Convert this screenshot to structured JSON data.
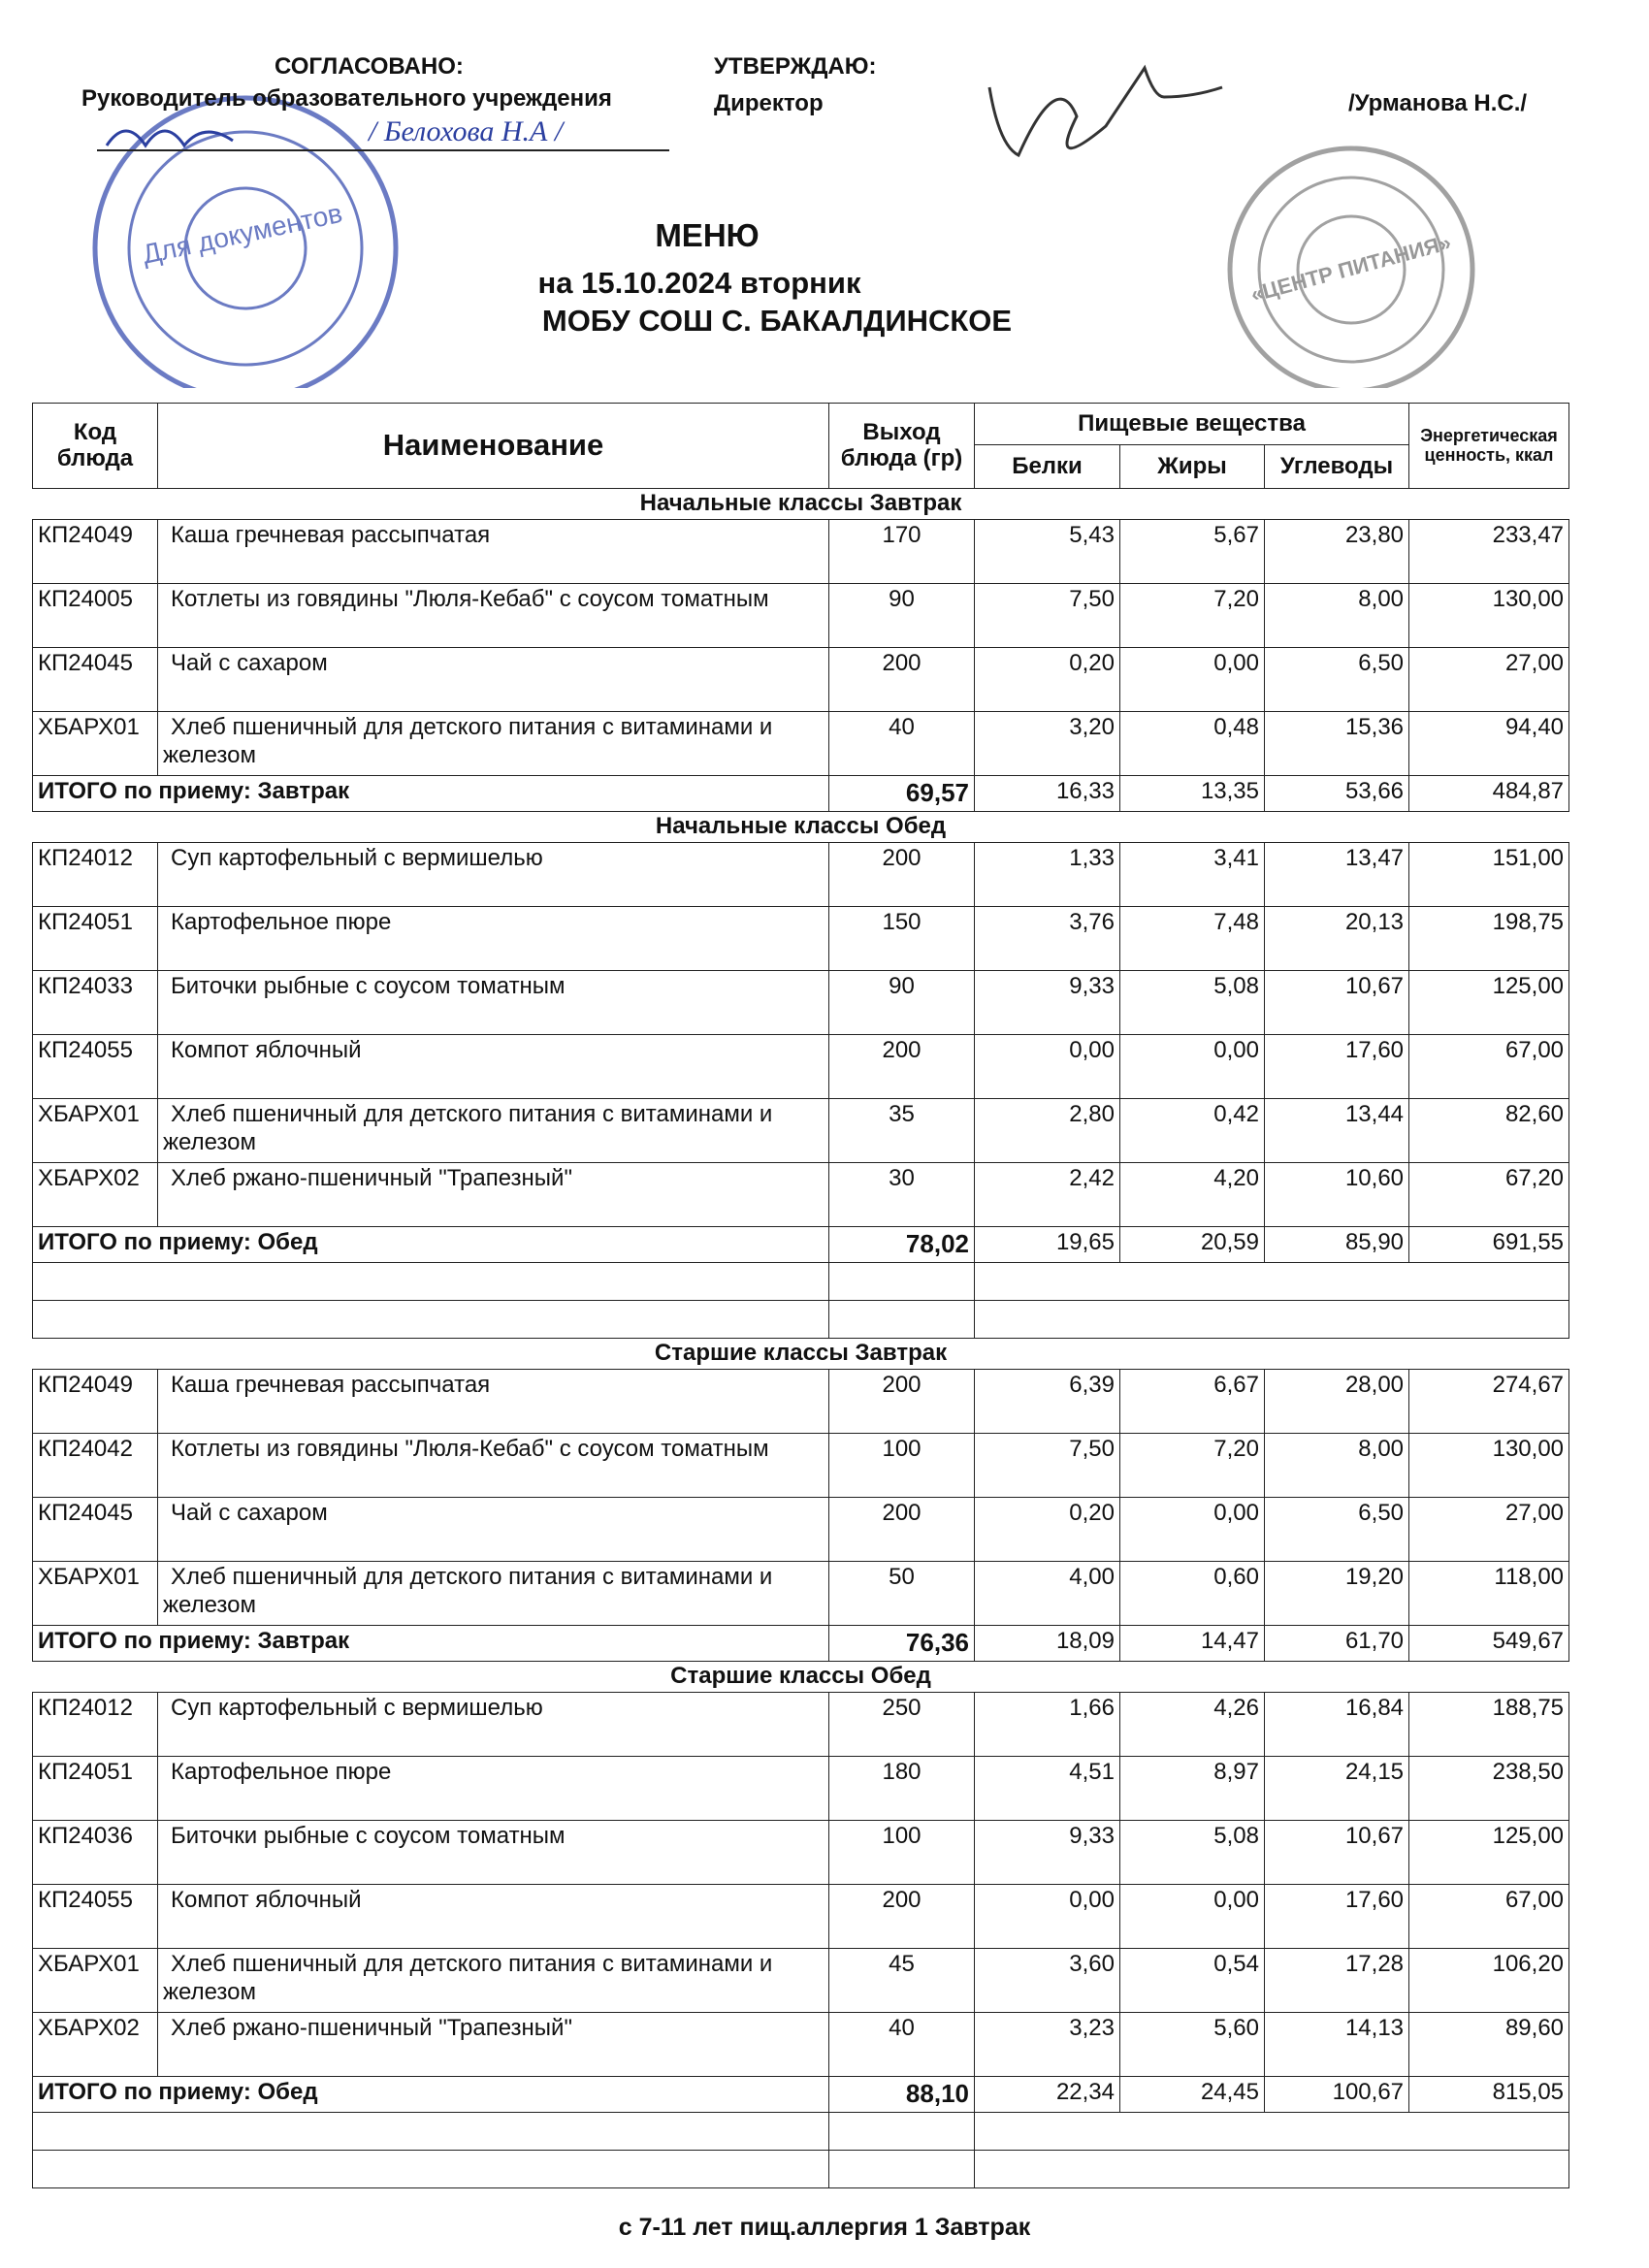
{
  "header": {
    "approved_label": "СОГЛАСОВАНО:",
    "approved_role": "Руководитель образовательного учреждения",
    "approved_signature": "/ Белохова Н.А /",
    "approve_label": "УТВЕРЖДАЮ:",
    "approve_role": "Директор",
    "approve_name": "/Урманова Н.С./",
    "title": "МЕНЮ",
    "date_line": "на 15.10.2024  вторник",
    "school": "МОБУ СОШ С. БАКАЛДИНСКОЕ"
  },
  "stamps": {
    "left_text": "Для документов",
    "right_text": "«ЦЕНТР ПИТАНИЯ»"
  },
  "table": {
    "headers": {
      "code": "Код блюда",
      "name": "Наименование",
      "output": "Выход блюда (гр)",
      "nutrients": "Пищевые вещества",
      "protein": "Белки",
      "fat": "Жиры",
      "carbs": "Углеводы",
      "energy": "Энергетическая ценность, ккал"
    },
    "sections": [
      {
        "title": "Начальные классы Завтрак",
        "rows": [
          [
            "КП24049",
            "Каша гречневая рассыпчатая",
            "170",
            "5,43",
            "5,67",
            "23,80",
            "233,47"
          ],
          [
            "КП24005",
            "Котлеты из говядины \"Люля-Кебаб\" с соусом томатным",
            "90",
            "7,50",
            "7,20",
            "8,00",
            "130,00"
          ],
          [
            "КП24045",
            "Чай с сахаром",
            "200",
            "0,20",
            "0,00",
            "6,50",
            "27,00"
          ],
          [
            "ХБАРХ01",
            "Хлеб пшеничный для детского питания с витаминами и железом",
            "40",
            "3,20",
            "0,48",
            "15,36",
            "94,40"
          ]
        ],
        "total": [
          "ИТОГО по приему: Завтрак",
          "69,57",
          "16,33",
          "13,35",
          "53,66",
          "484,87"
        ]
      },
      {
        "title": "Начальные классы Обед",
        "rows": [
          [
            "КП24012",
            "Суп картофельный с вермишелью",
            "200",
            "1,33",
            "3,41",
            "13,47",
            "151,00"
          ],
          [
            "КП24051",
            "Картофельное пюре",
            "150",
            "3,76",
            "7,48",
            "20,13",
            "198,75"
          ],
          [
            "КП24033",
            "Биточки рыбные с соусом томатным",
            "90",
            "9,33",
            "5,08",
            "10,67",
            "125,00"
          ],
          [
            "КП24055",
            "Компот яблочный",
            "200",
            "0,00",
            "0,00",
            "17,60",
            "67,00"
          ],
          [
            "ХБАРХ01",
            "Хлеб пшеничный для детского питания с витаминами и железом",
            "35",
            "2,80",
            "0,42",
            "13,44",
            "82,60"
          ],
          [
            "ХБАРХ02",
            "Хлеб ржано-пшеничный \"Трапезный\"",
            "30",
            "2,42",
            "4,20",
            "10,60",
            "67,20"
          ]
        ],
        "total": [
          "ИТОГО по приему: Обед",
          "78,02",
          "19,65",
          "20,59",
          "85,90",
          "691,55"
        ]
      },
      {
        "title": "Старшие классы Завтрак",
        "rows": [
          [
            "КП24049",
            "Каша гречневая рассыпчатая",
            "200",
            "6,39",
            "6,67",
            "28,00",
            "274,67"
          ],
          [
            "КП24042",
            "Котлеты из говядины \"Люля-Кебаб\" с соусом томатным",
            "100",
            "7,50",
            "7,20",
            "8,00",
            "130,00"
          ],
          [
            "КП24045",
            "Чай с сахаром",
            "200",
            "0,20",
            "0,00",
            "6,50",
            "27,00"
          ],
          [
            "ХБАРХ01",
            "Хлеб пшеничный для детского питания с витаминами и железом",
            "50",
            "4,00",
            "0,60",
            "19,20",
            "118,00"
          ]
        ],
        "total": [
          "ИТОГО по приему: Завтрак",
          "76,36",
          "18,09",
          "14,47",
          "61,70",
          "549,67"
        ]
      },
      {
        "title": "Старшие классы Обед",
        "rows": [
          [
            "КП24012",
            "Суп картофельный с вермишелью",
            "250",
            "1,66",
            "4,26",
            "16,84",
            "188,75"
          ],
          [
            "КП24051",
            "Картофельное пюре",
            "180",
            "4,51",
            "8,97",
            "24,15",
            "238,50"
          ],
          [
            "КП24036",
            "Биточки рыбные с соусом томатным",
            "100",
            "9,33",
            "5,08",
            "10,67",
            "125,00"
          ],
          [
            "КП24055",
            "Компот яблочный",
            "200",
            "0,00",
            "0,00",
            "17,60",
            "67,00"
          ],
          [
            "ХБАРХ01",
            "Хлеб пшеничный для детского питания с витаминами и железом",
            "45",
            "3,60",
            "0,54",
            "17,28",
            "106,20"
          ],
          [
            "ХБАРХ02",
            "Хлеб ржано-пшеничный \"Трапезный\"",
            "40",
            "3,23",
            "5,60",
            "14,13",
            "89,60"
          ]
        ],
        "total": [
          "ИТОГО по приему: Обед",
          "88,10",
          "22,34",
          "24,45",
          "100,67",
          "815,05"
        ]
      }
    ]
  },
  "footer": "с 7-11 лет пищ.аллергия 1 Завтрак"
}
